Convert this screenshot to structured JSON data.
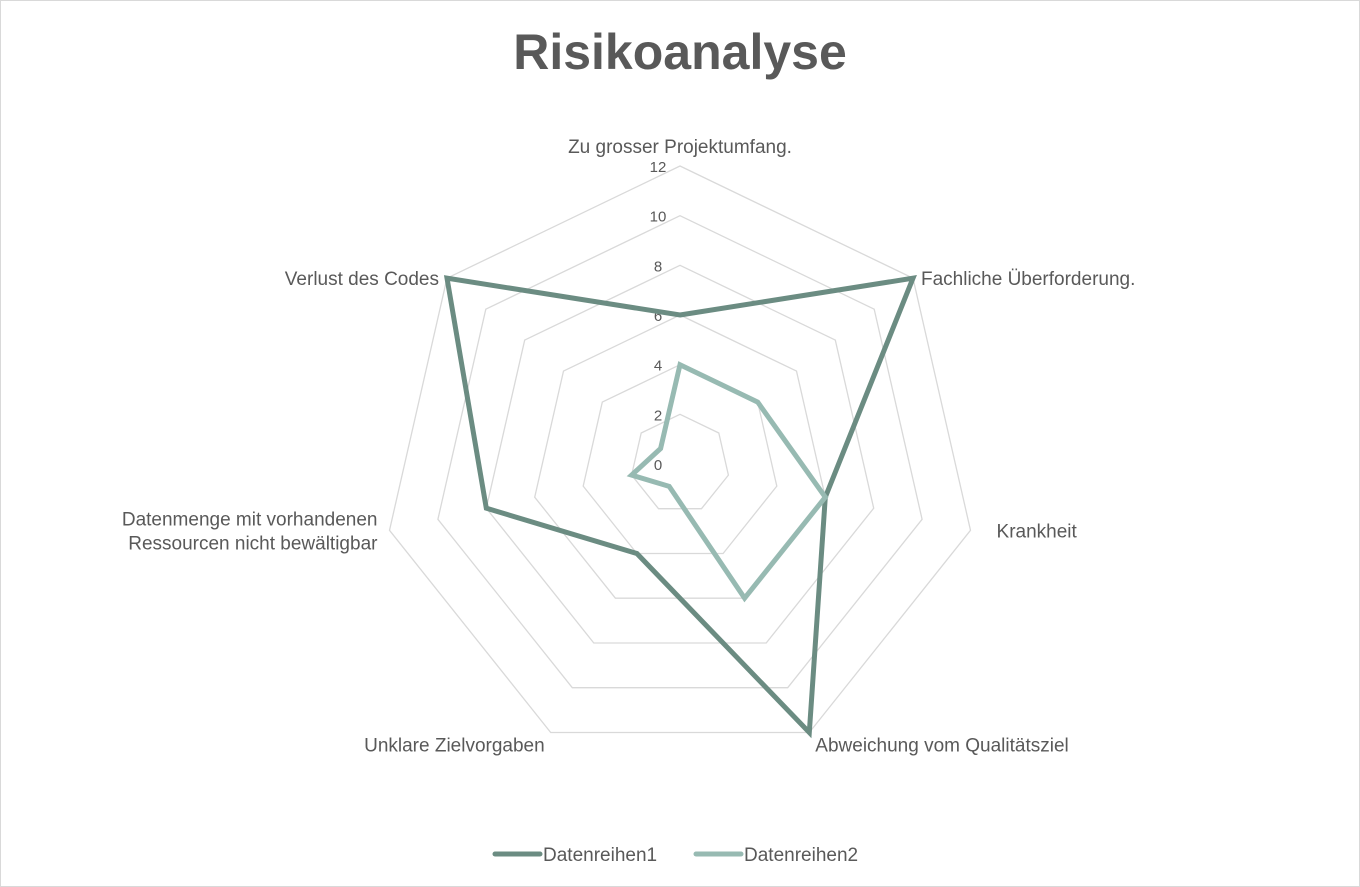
{
  "chart_data": {
    "type": "radar",
    "title": "Risikoanalyse",
    "categories": [
      "Zu grosser Projektumfang.",
      "Fachliche Überforderung.",
      "Krankheit",
      "Abweichung vom Qualitätsziel",
      "Unklare Zielvorgaben",
      "Datenmenge mit vorhandenen Ressourcen nicht bewältigbar",
      "Verlust des Codes"
    ],
    "category_label_lines": [
      [
        "Zu grosser Projektumfang."
      ],
      [
        "Fachliche Überforderung."
      ],
      [
        "Krankheit"
      ],
      [
        "Abweichung vom Qualitätsziel"
      ],
      [
        "Unklare Zielvorgaben"
      ],
      [
        "Datenmenge mit vorhandenen",
        "Ressourcen nicht bewältigbar"
      ],
      [
        "Verlust des Codes"
      ]
    ],
    "radial_ticks": [
      0,
      2,
      4,
      6,
      8,
      10,
      12
    ],
    "rlim": [
      0,
      12
    ],
    "series": [
      {
        "name": "Datenreihen1",
        "color": "#6b8c82",
        "values": [
          6,
          12,
          6,
          12,
          4,
          8,
          12
        ]
      },
      {
        "name": "Datenreihen2",
        "color": "#97bab2",
        "values": [
          4,
          4,
          6,
          6,
          1,
          2,
          1
        ]
      }
    ],
    "grid": true,
    "legend_position": "bottom"
  }
}
